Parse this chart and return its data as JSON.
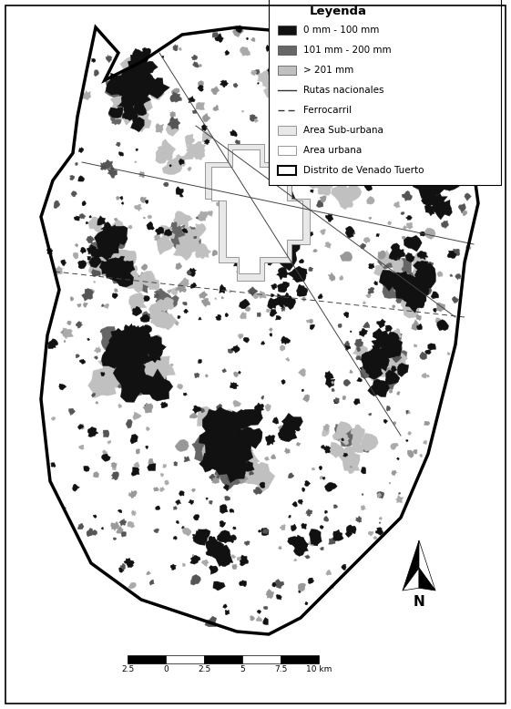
{
  "background_color": "#ffffff",
  "legend_title": "Leyenda",
  "legend_items_patch": [
    {
      "label": "0 mm - 100 mm",
      "color": "#111111"
    },
    {
      "label": "101 mm - 200 mm",
      "color": "#666666"
    },
    {
      "label": "> 201 mm",
      "color": "#c0c0c0"
    }
  ],
  "legend_items_line": [
    {
      "label": "Rutas nacionales",
      "style": "solid"
    },
    {
      "label": "Ferrocarril",
      "style": "dashed"
    }
  ],
  "legend_items_area": [
    {
      "label": "Area Sub-urbana",
      "facecolor": "#e8e8e8",
      "edgecolor": "#888888",
      "lw": 0.6
    },
    {
      "label": "Area urbana",
      "facecolor": "#ffffff",
      "edgecolor": "#888888",
      "lw": 0.6
    },
    {
      "label": "Distrito de Venado Tuerto",
      "facecolor": "#ffffff",
      "edgecolor": "#000000",
      "lw": 1.5
    }
  ],
  "figsize": [
    5.61,
    7.78
  ],
  "dpi": 100
}
